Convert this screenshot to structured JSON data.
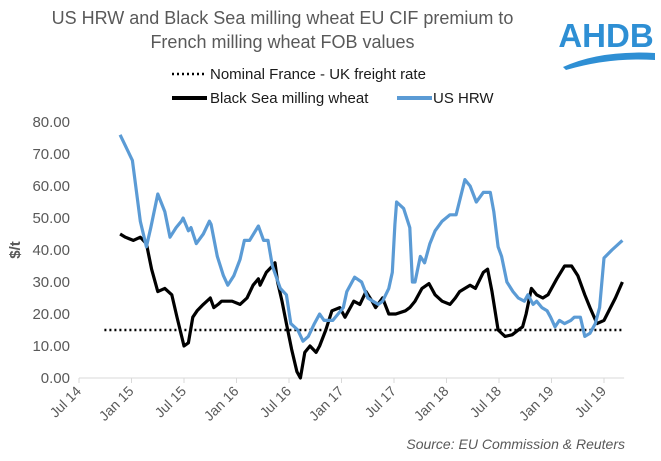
{
  "logo": {
    "text": "AHDB",
    "color": "#2e8fd4"
  },
  "chart_data": {
    "type": "line",
    "title_line1": "US HRW and Black Sea milling wheat EU CIF premium to",
    "title_line2": "French milling wheat FOB values",
    "ylabel": "$/t",
    "xlabel": "",
    "x_unit": "months since Jul 2014",
    "ylim": [
      0,
      80
    ],
    "xlim": [
      0,
      62.3
    ],
    "y_ticks": [
      "0.00",
      "10.00",
      "20.00",
      "30.00",
      "40.00",
      "50.00",
      "60.00",
      "70.00",
      "80.00"
    ],
    "x_ticks": [
      {
        "m": 0,
        "label": "Jul 14"
      },
      {
        "m": 6,
        "label": "Jan 15"
      },
      {
        "m": 12,
        "label": "Jul 15"
      },
      {
        "m": 18,
        "label": "Jan 16"
      },
      {
        "m": 24,
        "label": "Jul 16"
      },
      {
        "m": 30,
        "label": "Jan 17"
      },
      {
        "m": 36,
        "label": "Jul 17"
      },
      {
        "m": 42,
        "label": "Jan 18"
      },
      {
        "m": 48,
        "label": "Jul 18"
      },
      {
        "m": 54,
        "label": "Jan 19"
      },
      {
        "m": 60,
        "label": "Jul 19"
      }
    ],
    "grid": false,
    "legend_placement": "top",
    "source": "Source: EU Commission & Reuters",
    "series": [
      {
        "name": "Nominal France - UK freight rate",
        "color": "#000000",
        "style": "dotted",
        "points": [
          [
            2.9,
            15
          ],
          [
            62.1,
            15
          ]
        ]
      },
      {
        "name": "Black Sea milling wheat",
        "color": "#000000",
        "style": "solid",
        "points": [
          [
            4.7,
            45
          ],
          [
            5.3,
            44
          ],
          [
            6.2,
            43
          ],
          [
            7.0,
            44
          ],
          [
            7.7,
            42
          ],
          [
            8.3,
            34
          ],
          [
            9.0,
            27
          ],
          [
            9.8,
            28
          ],
          [
            10.6,
            26
          ],
          [
            11.2,
            19
          ],
          [
            12.0,
            10
          ],
          [
            12.5,
            11
          ],
          [
            13.0,
            19
          ],
          [
            13.5,
            21
          ],
          [
            14.2,
            23
          ],
          [
            15.0,
            25
          ],
          [
            15.4,
            22
          ],
          [
            15.9,
            23
          ],
          [
            16.3,
            24
          ],
          [
            17.5,
            24
          ],
          [
            18.4,
            23
          ],
          [
            19.2,
            25
          ],
          [
            19.9,
            29
          ],
          [
            20.5,
            31
          ],
          [
            20.7,
            29
          ],
          [
            21.4,
            33
          ],
          [
            22.1,
            35
          ],
          [
            22.4,
            36
          ],
          [
            22.7,
            30
          ],
          [
            23.2,
            24
          ],
          [
            23.7,
            17
          ],
          [
            24.3,
            9
          ],
          [
            24.9,
            2
          ],
          [
            25.3,
            0
          ],
          [
            25.8,
            8
          ],
          [
            26.4,
            10
          ],
          [
            27.1,
            8
          ],
          [
            27.5,
            10
          ],
          [
            28.2,
            15
          ],
          [
            28.9,
            21
          ],
          [
            29.8,
            22
          ],
          [
            30.4,
            19
          ],
          [
            31.0,
            22
          ],
          [
            31.4,
            24
          ],
          [
            32.1,
            23
          ],
          [
            32.8,
            27
          ],
          [
            33.5,
            24
          ],
          [
            33.9,
            22
          ],
          [
            34.7,
            25
          ],
          [
            35.4,
            20
          ],
          [
            36.2,
            20
          ],
          [
            37.3,
            21
          ],
          [
            37.8,
            22
          ],
          [
            38.4,
            24
          ],
          [
            39.2,
            28
          ],
          [
            40.0,
            29.5
          ],
          [
            40.7,
            26
          ],
          [
            41.5,
            24
          ],
          [
            42.4,
            23
          ],
          [
            43.0,
            25
          ],
          [
            43.5,
            27
          ],
          [
            44.1,
            28
          ],
          [
            44.7,
            29
          ],
          [
            45.3,
            28
          ],
          [
            46.2,
            33
          ],
          [
            46.7,
            34
          ],
          [
            47.2,
            27
          ],
          [
            47.9,
            15
          ],
          [
            48.7,
            13
          ],
          [
            49.5,
            13.5
          ],
          [
            50.2,
            15
          ],
          [
            50.7,
            16
          ],
          [
            51.1,
            20
          ],
          [
            51.7,
            28
          ],
          [
            52.3,
            26
          ],
          [
            53.0,
            25
          ],
          [
            53.6,
            26
          ],
          [
            54.2,
            29
          ],
          [
            54.6,
            31
          ],
          [
            55.5,
            35
          ],
          [
            56.3,
            35
          ],
          [
            57.0,
            32
          ],
          [
            57.8,
            26
          ],
          [
            58.4,
            22
          ],
          [
            59.2,
            17
          ],
          [
            60.0,
            18
          ],
          [
            61.3,
            25
          ],
          [
            62.1,
            30
          ]
        ]
      },
      {
        "name": "US HRW",
        "color": "#5b9bd5",
        "style": "solid",
        "points": [
          [
            4.7,
            76
          ],
          [
            6.1,
            68
          ],
          [
            7.0,
            49
          ],
          [
            7.7,
            41
          ],
          [
            8.2,
            47
          ],
          [
            9.0,
            57.5
          ],
          [
            9.8,
            52
          ],
          [
            10.4,
            44
          ],
          [
            11.1,
            47
          ],
          [
            11.7,
            49
          ],
          [
            11.9,
            50
          ],
          [
            12.5,
            46
          ],
          [
            12.8,
            47
          ],
          [
            13.4,
            42
          ],
          [
            14.2,
            45
          ],
          [
            14.9,
            49
          ],
          [
            15.1,
            48
          ],
          [
            15.8,
            38
          ],
          [
            16.5,
            32
          ],
          [
            17.0,
            29
          ],
          [
            17.7,
            32
          ],
          [
            18.4,
            37
          ],
          [
            18.9,
            43
          ],
          [
            19.5,
            43
          ],
          [
            20.5,
            47.5
          ],
          [
            21.1,
            43
          ],
          [
            21.6,
            43
          ],
          [
            22.1,
            35
          ],
          [
            23.0,
            28
          ],
          [
            23.7,
            26
          ],
          [
            24.2,
            17
          ],
          [
            25.0,
            15
          ],
          [
            25.6,
            11.5
          ],
          [
            26.2,
            13
          ],
          [
            26.9,
            17
          ],
          [
            27.5,
            20
          ],
          [
            28.0,
            18
          ],
          [
            29.0,
            18
          ],
          [
            30.2,
            22
          ],
          [
            30.6,
            27
          ],
          [
            31.5,
            31.5
          ],
          [
            32.3,
            30
          ],
          [
            33.0,
            25
          ],
          [
            33.6,
            24
          ],
          [
            34.2,
            23
          ],
          [
            34.7,
            24
          ],
          [
            35.4,
            28
          ],
          [
            35.8,
            33
          ],
          [
            36.1,
            48
          ],
          [
            36.3,
            55
          ],
          [
            37.1,
            53
          ],
          [
            37.8,
            47
          ],
          [
            38.1,
            30
          ],
          [
            38.4,
            30
          ],
          [
            39.0,
            38
          ],
          [
            39.5,
            36
          ],
          [
            40.1,
            42
          ],
          [
            40.7,
            46
          ],
          [
            41.5,
            49
          ],
          [
            42.4,
            51
          ],
          [
            43.1,
            51
          ],
          [
            44.1,
            62
          ],
          [
            44.7,
            60
          ],
          [
            45.4,
            55
          ],
          [
            46.2,
            58
          ],
          [
            47.0,
            58
          ],
          [
            47.4,
            52
          ],
          [
            47.9,
            41
          ],
          [
            48.3,
            38
          ],
          [
            48.9,
            30
          ],
          [
            49.6,
            27
          ],
          [
            50.2,
            25
          ],
          [
            50.9,
            24
          ],
          [
            51.3,
            26
          ],
          [
            51.9,
            23
          ],
          [
            52.3,
            24
          ],
          [
            52.9,
            22
          ],
          [
            53.5,
            21
          ],
          [
            53.9,
            19
          ],
          [
            54.4,
            16
          ],
          [
            54.9,
            18
          ],
          [
            55.5,
            17
          ],
          [
            56.2,
            18
          ],
          [
            56.6,
            19
          ],
          [
            57.3,
            19
          ],
          [
            57.8,
            13
          ],
          [
            58.4,
            14
          ],
          [
            59.0,
            17
          ],
          [
            59.5,
            22
          ],
          [
            60.0,
            37.5
          ],
          [
            60.9,
            40
          ],
          [
            62.1,
            43
          ]
        ]
      }
    ]
  }
}
